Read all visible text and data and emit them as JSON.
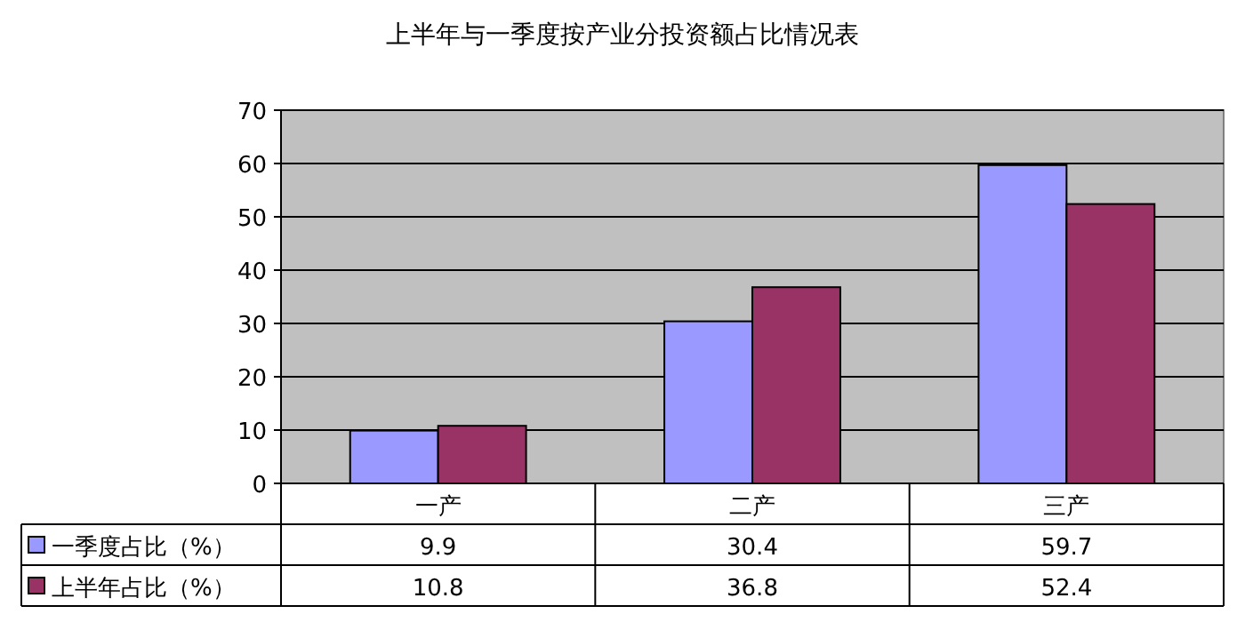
{
  "chart_data": {
    "type": "bar",
    "title": "上半年与一季度按产业分投资额占比情况表",
    "categories": [
      "一产",
      "二产",
      "三产"
    ],
    "series": [
      {
        "name": "一季度占比（%）",
        "color": "#9999ff",
        "values": [
          9.9,
          30.4,
          59.7
        ]
      },
      {
        "name": "上半年占比（%）",
        "color": "#993366",
        "values": [
          10.8,
          36.8,
          52.4
        ]
      }
    ],
    "ylim": [
      0,
      70
    ],
    "yticks": [
      0,
      10,
      20,
      30,
      40,
      50,
      60,
      70
    ],
    "grid": "y",
    "data_labels": true,
    "legend": "bottom"
  }
}
